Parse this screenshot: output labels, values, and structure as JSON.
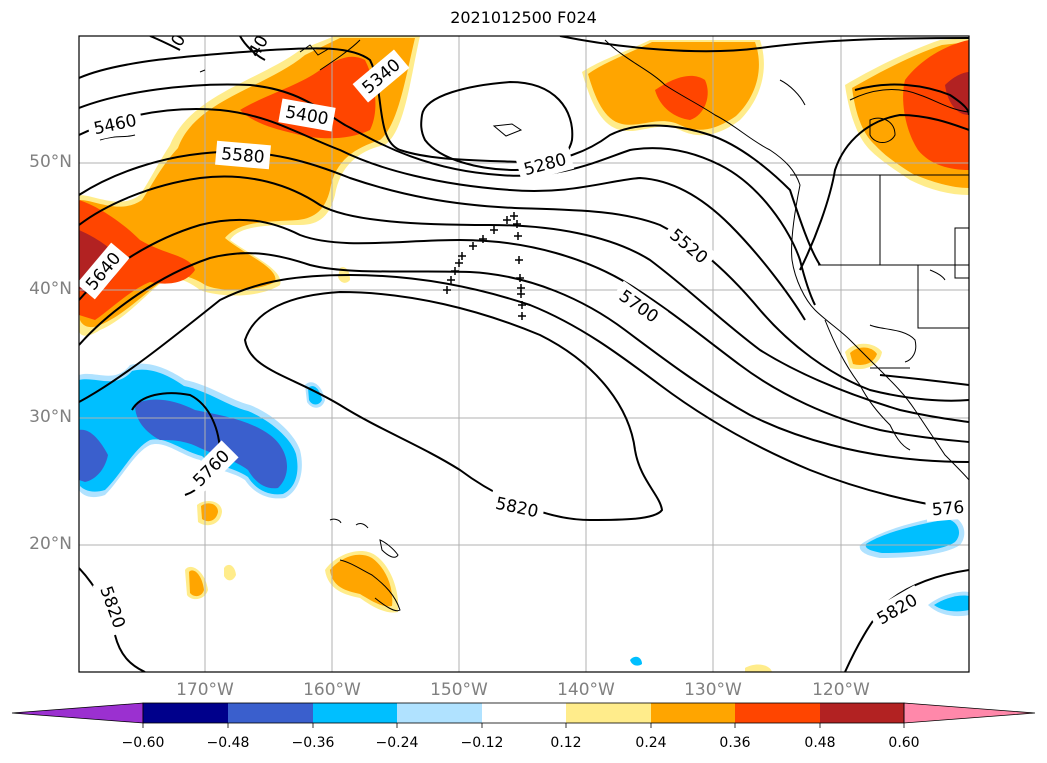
{
  "title": "2021012500 F024",
  "colors": {
    "neg_extreme": "#9b30d0",
    "neg_060": "#00008b",
    "neg_048": "#3a5fcd",
    "neg_036": "#00bfff",
    "neg_024": "#b0e2ff",
    "neutral": "#ffffff",
    "pos_012": "#ffec8b",
    "pos_024": "#ffa500",
    "pos_036": "#ff4500",
    "pos_048": "#b22222",
    "pos_extreme": "#ff88aa",
    "contour": "#000000",
    "grid": "#b0b0b0"
  },
  "lat_labels": [
    "50°N",
    "40°N",
    "30°N",
    "20°N"
  ],
  "lon_labels": [
    "170°W",
    "160°W",
    "150°W",
    "140°W",
    "130°W",
    "120°W"
  ],
  "colorbar": {
    "ticks": [
      "−0.60",
      "−0.48",
      "−0.36",
      "−0.24",
      "−0.12",
      "0.12",
      "0.24",
      "0.36",
      "0.48",
      "0.60"
    ]
  },
  "contour_labels": [
    {
      "text": "5460",
      "rot": -12
    },
    {
      "text": "5400",
      "rot": 10
    },
    {
      "text": "5340",
      "rot": -40
    },
    {
      "text": "5580",
      "rot": 5
    },
    {
      "text": "5280",
      "rot": -15
    },
    {
      "text": "5520",
      "rot": 40
    },
    {
      "text": "5640",
      "rot": -50
    },
    {
      "text": "5700",
      "rot": 35
    },
    {
      "text": "5760",
      "rot": -45
    },
    {
      "text": "5820",
      "rot": 12
    },
    {
      "text": "5820",
      "rot": 70
    },
    {
      "text": "5820",
      "rot": -30
    },
    {
      "text": "576",
      "rot": -5
    },
    {
      "text": "40",
      "rot": -60
    },
    {
      "text": "0",
      "rot": -60
    }
  ]
}
